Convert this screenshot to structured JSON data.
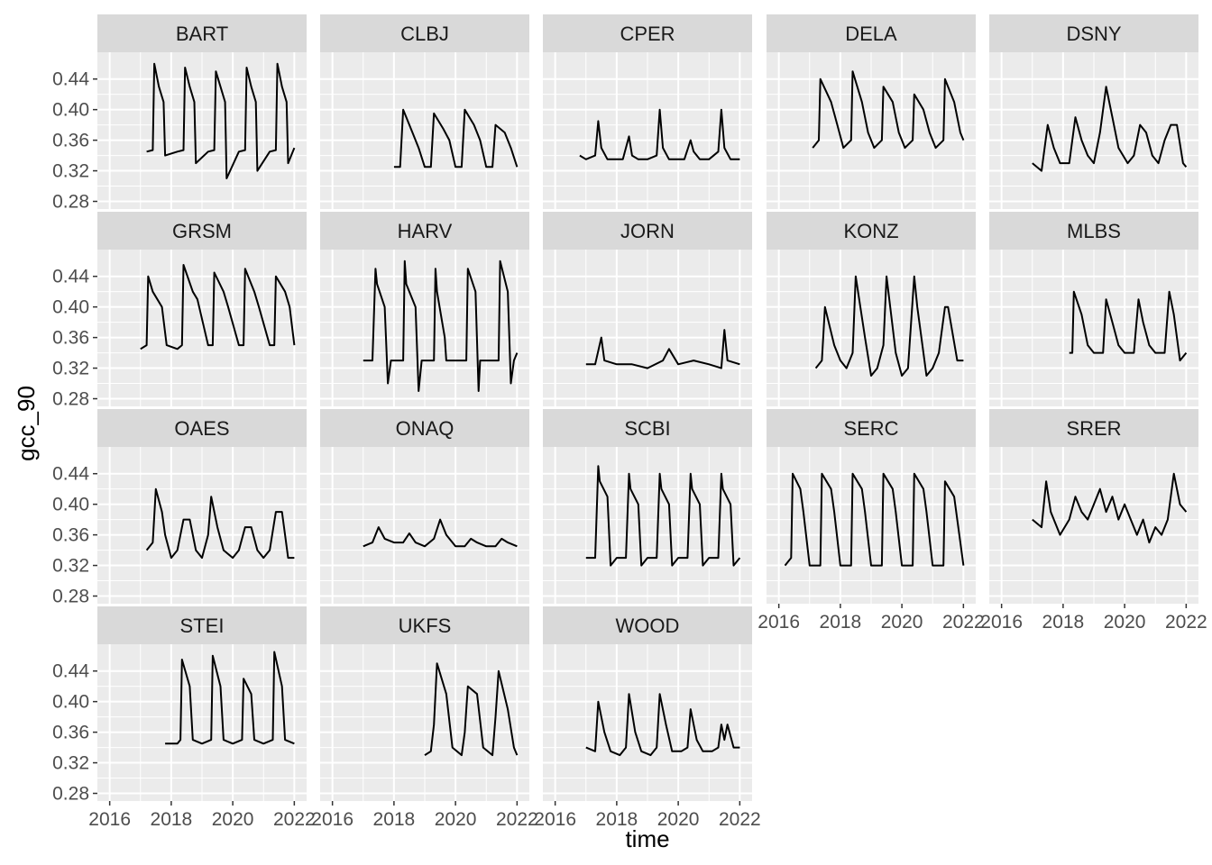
{
  "chart_data": {
    "type": "line",
    "facet_layout": "wrap",
    "xlabel": "time",
    "ylabel": "gcc_90",
    "xlim": [
      2015.6,
      2022.4
    ],
    "ylim": [
      0.27,
      0.475
    ],
    "x_ticks": [
      2016,
      2018,
      2020,
      2022
    ],
    "x_tick_labels": [
      "2016",
      "2018",
      "2020",
      "2022"
    ],
    "y_ticks": [
      0.28,
      0.32,
      0.36,
      0.4,
      0.44
    ],
    "y_tick_labels": [
      "0.28",
      "0.32",
      "0.36",
      "0.40",
      "0.44"
    ],
    "grid": true,
    "legend": "none",
    "colors": {
      "panel_bg": "#ebebeb",
      "strip_bg": "#d9d9d9",
      "grid": "#ffffff",
      "line": "#000000"
    },
    "panels": [
      {
        "site": "BART",
        "x": [
          2017.2,
          2017.4,
          2017.45,
          2017.6,
          2017.75,
          2017.8,
          2018.2,
          2018.4,
          2018.45,
          2018.6,
          2018.75,
          2018.8,
          2019.2,
          2019.4,
          2019.45,
          2019.6,
          2019.75,
          2019.8,
          2020.2,
          2020.4,
          2020.45,
          2020.6,
          2020.75,
          2020.8,
          2021.2,
          2021.4,
          2021.45,
          2021.6,
          2021.75,
          2021.8,
          2022.0
        ],
        "y": [
          0.345,
          0.347,
          0.46,
          0.43,
          0.41,
          0.34,
          0.345,
          0.347,
          0.455,
          0.43,
          0.41,
          0.33,
          0.345,
          0.347,
          0.45,
          0.43,
          0.41,
          0.31,
          0.345,
          0.347,
          0.455,
          0.43,
          0.41,
          0.32,
          0.345,
          0.347,
          0.46,
          0.43,
          0.41,
          0.33,
          0.35
        ]
      },
      {
        "site": "CLBJ",
        "x": [
          2018.0,
          2018.2,
          2018.3,
          2018.6,
          2018.8,
          2019.0,
          2019.2,
          2019.3,
          2019.6,
          2019.8,
          2020.0,
          2020.2,
          2020.3,
          2020.6,
          2020.8,
          2021.0,
          2021.2,
          2021.3,
          2021.6,
          2021.8,
          2022.0
        ],
        "y": [
          0.325,
          0.325,
          0.4,
          0.37,
          0.35,
          0.325,
          0.325,
          0.395,
          0.375,
          0.36,
          0.325,
          0.325,
          0.4,
          0.38,
          0.36,
          0.325,
          0.325,
          0.38,
          0.37,
          0.35,
          0.325
        ]
      },
      {
        "site": "CPER",
        "x": [
          2016.8,
          2017.0,
          2017.3,
          2017.4,
          2017.5,
          2017.7,
          2018.2,
          2018.4,
          2018.5,
          2018.7,
          2019.0,
          2019.3,
          2019.4,
          2019.5,
          2019.7,
          2020.2,
          2020.4,
          2020.5,
          2020.7,
          2021.0,
          2021.3,
          2021.4,
          2021.5,
          2021.7,
          2022.0
        ],
        "y": [
          0.34,
          0.335,
          0.34,
          0.385,
          0.35,
          0.335,
          0.335,
          0.365,
          0.34,
          0.335,
          0.335,
          0.34,
          0.4,
          0.35,
          0.335,
          0.335,
          0.36,
          0.345,
          0.335,
          0.335,
          0.345,
          0.4,
          0.35,
          0.335,
          0.335
        ]
      },
      {
        "site": "DELA",
        "x": [
          2017.1,
          2017.3,
          2017.35,
          2017.7,
          2017.9,
          2018.1,
          2018.35,
          2018.4,
          2018.7,
          2018.9,
          2019.1,
          2019.35,
          2019.4,
          2019.7,
          2019.9,
          2020.1,
          2020.35,
          2020.4,
          2020.7,
          2020.9,
          2021.1,
          2021.35,
          2021.4,
          2021.7,
          2021.9,
          2022.0
        ],
        "y": [
          0.35,
          0.36,
          0.44,
          0.41,
          0.38,
          0.35,
          0.36,
          0.45,
          0.41,
          0.37,
          0.35,
          0.36,
          0.43,
          0.41,
          0.37,
          0.35,
          0.36,
          0.42,
          0.4,
          0.37,
          0.35,
          0.36,
          0.44,
          0.41,
          0.37,
          0.36
        ]
      },
      {
        "site": "DSNY",
        "x": [
          2017.0,
          2017.3,
          2017.5,
          2017.7,
          2017.9,
          2018.2,
          2018.4,
          2018.6,
          2018.8,
          2019.0,
          2019.2,
          2019.4,
          2019.6,
          2019.8,
          2020.1,
          2020.3,
          2020.5,
          2020.7,
          2020.9,
          2021.1,
          2021.3,
          2021.5,
          2021.7,
          2021.9,
          2022.0
        ],
        "y": [
          0.33,
          0.32,
          0.38,
          0.35,
          0.33,
          0.33,
          0.39,
          0.36,
          0.34,
          0.33,
          0.37,
          0.43,
          0.39,
          0.35,
          0.33,
          0.34,
          0.38,
          0.37,
          0.34,
          0.33,
          0.36,
          0.38,
          0.38,
          0.33,
          0.325
        ]
      },
      {
        "site": "GRSM",
        "x": [
          2017.0,
          2017.2,
          2017.25,
          2017.4,
          2017.7,
          2017.85,
          2018.2,
          2018.35,
          2018.4,
          2018.7,
          2018.85,
          2019.2,
          2019.35,
          2019.4,
          2019.7,
          2019.85,
          2020.2,
          2020.35,
          2020.4,
          2020.7,
          2020.85,
          2021.2,
          2021.35,
          2021.4,
          2021.7,
          2021.85,
          2022.0
        ],
        "y": [
          0.345,
          0.35,
          0.44,
          0.42,
          0.4,
          0.35,
          0.345,
          0.35,
          0.455,
          0.42,
          0.41,
          0.35,
          0.35,
          0.445,
          0.42,
          0.4,
          0.35,
          0.35,
          0.45,
          0.42,
          0.4,
          0.35,
          0.35,
          0.44,
          0.42,
          0.4,
          0.35
        ]
      },
      {
        "site": "HARV",
        "x": [
          2017.0,
          2017.3,
          2017.4,
          2017.45,
          2017.7,
          2017.8,
          2017.9,
          2018.3,
          2018.35,
          2018.4,
          2018.7,
          2018.8,
          2018.9,
          2019.3,
          2019.35,
          2019.4,
          2019.65,
          2019.7,
          2020.2,
          2020.35,
          2020.4,
          2020.65,
          2020.75,
          2020.8,
          2021.3,
          2021.4,
          2021.45,
          2021.7,
          2021.8,
          2021.9,
          2022.0
        ],
        "y": [
          0.33,
          0.33,
          0.45,
          0.43,
          0.4,
          0.3,
          0.33,
          0.33,
          0.46,
          0.43,
          0.4,
          0.29,
          0.33,
          0.33,
          0.45,
          0.42,
          0.36,
          0.33,
          0.33,
          0.33,
          0.45,
          0.42,
          0.29,
          0.33,
          0.33,
          0.33,
          0.46,
          0.42,
          0.3,
          0.33,
          0.34
        ]
      },
      {
        "site": "JORN",
        "x": [
          2017.0,
          2017.3,
          2017.5,
          2017.6,
          2018.0,
          2018.5,
          2019.0,
          2019.5,
          2019.7,
          2020.0,
          2020.5,
          2021.0,
          2021.4,
          2021.5,
          2021.6,
          2022.0
        ],
        "y": [
          0.325,
          0.325,
          0.36,
          0.33,
          0.325,
          0.325,
          0.32,
          0.33,
          0.345,
          0.325,
          0.33,
          0.325,
          0.32,
          0.37,
          0.33,
          0.325
        ]
      },
      {
        "site": "KONZ",
        "x": [
          2017.2,
          2017.4,
          2017.5,
          2017.8,
          2018.0,
          2018.2,
          2018.4,
          2018.5,
          2018.8,
          2019.0,
          2019.2,
          2019.4,
          2019.5,
          2019.8,
          2020.0,
          2020.2,
          2020.4,
          2020.5,
          2020.8,
          2021.0,
          2021.2,
          2021.4,
          2021.5,
          2021.8,
          2022.0
        ],
        "y": [
          0.32,
          0.33,
          0.4,
          0.35,
          0.33,
          0.32,
          0.34,
          0.44,
          0.36,
          0.31,
          0.32,
          0.35,
          0.44,
          0.34,
          0.31,
          0.32,
          0.44,
          0.4,
          0.31,
          0.32,
          0.34,
          0.4,
          0.4,
          0.33,
          0.33
        ]
      },
      {
        "site": "MLBS",
        "x": [
          2018.2,
          2018.3,
          2018.35,
          2018.6,
          2018.8,
          2019.0,
          2019.3,
          2019.4,
          2019.6,
          2019.8,
          2020.0,
          2020.3,
          2020.45,
          2020.6,
          2020.8,
          2021.0,
          2021.3,
          2021.45,
          2021.6,
          2021.8,
          2022.0
        ],
        "y": [
          0.34,
          0.34,
          0.42,
          0.39,
          0.35,
          0.34,
          0.34,
          0.41,
          0.38,
          0.35,
          0.34,
          0.34,
          0.41,
          0.38,
          0.35,
          0.34,
          0.34,
          0.42,
          0.39,
          0.33,
          0.34
        ]
      },
      {
        "site": "OAES",
        "x": [
          2017.2,
          2017.4,
          2017.5,
          2017.7,
          2017.8,
          2018.0,
          2018.2,
          2018.4,
          2018.6,
          2018.8,
          2019.0,
          2019.2,
          2019.3,
          2019.5,
          2019.7,
          2020.0,
          2020.2,
          2020.4,
          2020.6,
          2020.8,
          2021.0,
          2021.2,
          2021.4,
          2021.6,
          2021.8,
          2022.0
        ],
        "y": [
          0.34,
          0.35,
          0.42,
          0.39,
          0.36,
          0.33,
          0.34,
          0.38,
          0.38,
          0.34,
          0.33,
          0.36,
          0.41,
          0.37,
          0.34,
          0.33,
          0.34,
          0.37,
          0.37,
          0.34,
          0.33,
          0.34,
          0.39,
          0.39,
          0.33,
          0.33
        ]
      },
      {
        "site": "ONAQ",
        "x": [
          2017.0,
          2017.3,
          2017.5,
          2017.7,
          2018.0,
          2018.3,
          2018.5,
          2018.7,
          2019.0,
          2019.3,
          2019.5,
          2019.7,
          2020.0,
          2020.3,
          2020.5,
          2020.7,
          2021.0,
          2021.3,
          2021.5,
          2021.7,
          2022.0
        ],
        "y": [
          0.345,
          0.35,
          0.37,
          0.355,
          0.35,
          0.35,
          0.362,
          0.35,
          0.345,
          0.355,
          0.38,
          0.36,
          0.345,
          0.345,
          0.355,
          0.35,
          0.345,
          0.345,
          0.355,
          0.35,
          0.345
        ]
      },
      {
        "site": "SCBI",
        "x": [
          2017.0,
          2017.3,
          2017.4,
          2017.45,
          2017.7,
          2017.8,
          2018.0,
          2018.3,
          2018.4,
          2018.45,
          2018.7,
          2018.8,
          2019.0,
          2019.3,
          2019.4,
          2019.45,
          2019.7,
          2019.8,
          2020.0,
          2020.3,
          2020.4,
          2020.45,
          2020.7,
          2020.8,
          2021.0,
          2021.3,
          2021.4,
          2021.45,
          2021.7,
          2021.8,
          2022.0
        ],
        "y": [
          0.33,
          0.33,
          0.45,
          0.43,
          0.41,
          0.32,
          0.33,
          0.33,
          0.44,
          0.42,
          0.4,
          0.32,
          0.33,
          0.33,
          0.44,
          0.42,
          0.4,
          0.32,
          0.33,
          0.33,
          0.44,
          0.42,
          0.4,
          0.32,
          0.33,
          0.33,
          0.44,
          0.42,
          0.4,
          0.32,
          0.33
        ]
      },
      {
        "site": "SERC",
        "x": [
          2016.2,
          2016.4,
          2016.45,
          2016.7,
          2016.8,
          2017.0,
          2017.35,
          2017.4,
          2017.7,
          2017.8,
          2018.0,
          2018.35,
          2018.4,
          2018.7,
          2018.8,
          2019.0,
          2019.35,
          2019.4,
          2019.7,
          2019.8,
          2020.0,
          2020.35,
          2020.4,
          2020.7,
          2020.8,
          2021.0,
          2021.35,
          2021.4,
          2021.7,
          2021.8,
          2022.0
        ],
        "y": [
          0.32,
          0.33,
          0.44,
          0.42,
          0.39,
          0.32,
          0.32,
          0.44,
          0.42,
          0.39,
          0.32,
          0.32,
          0.44,
          0.42,
          0.39,
          0.32,
          0.32,
          0.44,
          0.42,
          0.39,
          0.32,
          0.32,
          0.44,
          0.42,
          0.39,
          0.32,
          0.32,
          0.43,
          0.41,
          0.38,
          0.32
        ]
      },
      {
        "site": "SRER",
        "x": [
          2017.0,
          2017.3,
          2017.45,
          2017.6,
          2017.9,
          2018.2,
          2018.4,
          2018.6,
          2018.8,
          2019.0,
          2019.2,
          2019.4,
          2019.6,
          2019.8,
          2020.0,
          2020.2,
          2020.4,
          2020.6,
          2020.8,
          2021.0,
          2021.2,
          2021.4,
          2021.6,
          2021.8,
          2022.0
        ],
        "y": [
          0.38,
          0.37,
          0.43,
          0.39,
          0.36,
          0.38,
          0.41,
          0.39,
          0.38,
          0.4,
          0.42,
          0.39,
          0.41,
          0.38,
          0.4,
          0.38,
          0.36,
          0.38,
          0.35,
          0.37,
          0.36,
          0.38,
          0.44,
          0.4,
          0.39
        ]
      },
      {
        "site": "STEI",
        "x": [
          2017.8,
          2018.2,
          2018.3,
          2018.35,
          2018.6,
          2018.7,
          2019.0,
          2019.3,
          2019.35,
          2019.6,
          2019.7,
          2020.0,
          2020.3,
          2020.35,
          2020.6,
          2020.7,
          2021.0,
          2021.3,
          2021.35,
          2021.6,
          2021.7,
          2022.0
        ],
        "y": [
          0.345,
          0.345,
          0.35,
          0.455,
          0.42,
          0.35,
          0.345,
          0.35,
          0.46,
          0.42,
          0.35,
          0.345,
          0.35,
          0.43,
          0.41,
          0.35,
          0.345,
          0.35,
          0.465,
          0.42,
          0.35,
          0.345
        ]
      },
      {
        "site": "UKFS",
        "x": [
          2019.0,
          2019.2,
          2019.3,
          2019.4,
          2019.7,
          2019.9,
          2020.2,
          2020.3,
          2020.4,
          2020.7,
          2020.9,
          2021.2,
          2021.3,
          2021.4,
          2021.7,
          2021.9,
          2022.0
        ],
        "y": [
          0.33,
          0.335,
          0.37,
          0.45,
          0.41,
          0.34,
          0.33,
          0.36,
          0.42,
          0.41,
          0.34,
          0.33,
          0.38,
          0.44,
          0.39,
          0.34,
          0.33
        ]
      },
      {
        "site": "WOOD",
        "x": [
          2017.0,
          2017.3,
          2017.4,
          2017.6,
          2017.8,
          2018.1,
          2018.3,
          2018.4,
          2018.6,
          2018.8,
          2019.1,
          2019.3,
          2019.4,
          2019.6,
          2019.8,
          2020.1,
          2020.3,
          2020.4,
          2020.6,
          2020.8,
          2021.1,
          2021.3,
          2021.4,
          2021.5,
          2021.6,
          2021.8,
          2022.0
        ],
        "y": [
          0.34,
          0.335,
          0.4,
          0.36,
          0.335,
          0.33,
          0.34,
          0.41,
          0.36,
          0.335,
          0.33,
          0.34,
          0.41,
          0.37,
          0.335,
          0.335,
          0.34,
          0.39,
          0.35,
          0.335,
          0.335,
          0.34,
          0.37,
          0.35,
          0.37,
          0.34,
          0.34
        ]
      }
    ]
  }
}
